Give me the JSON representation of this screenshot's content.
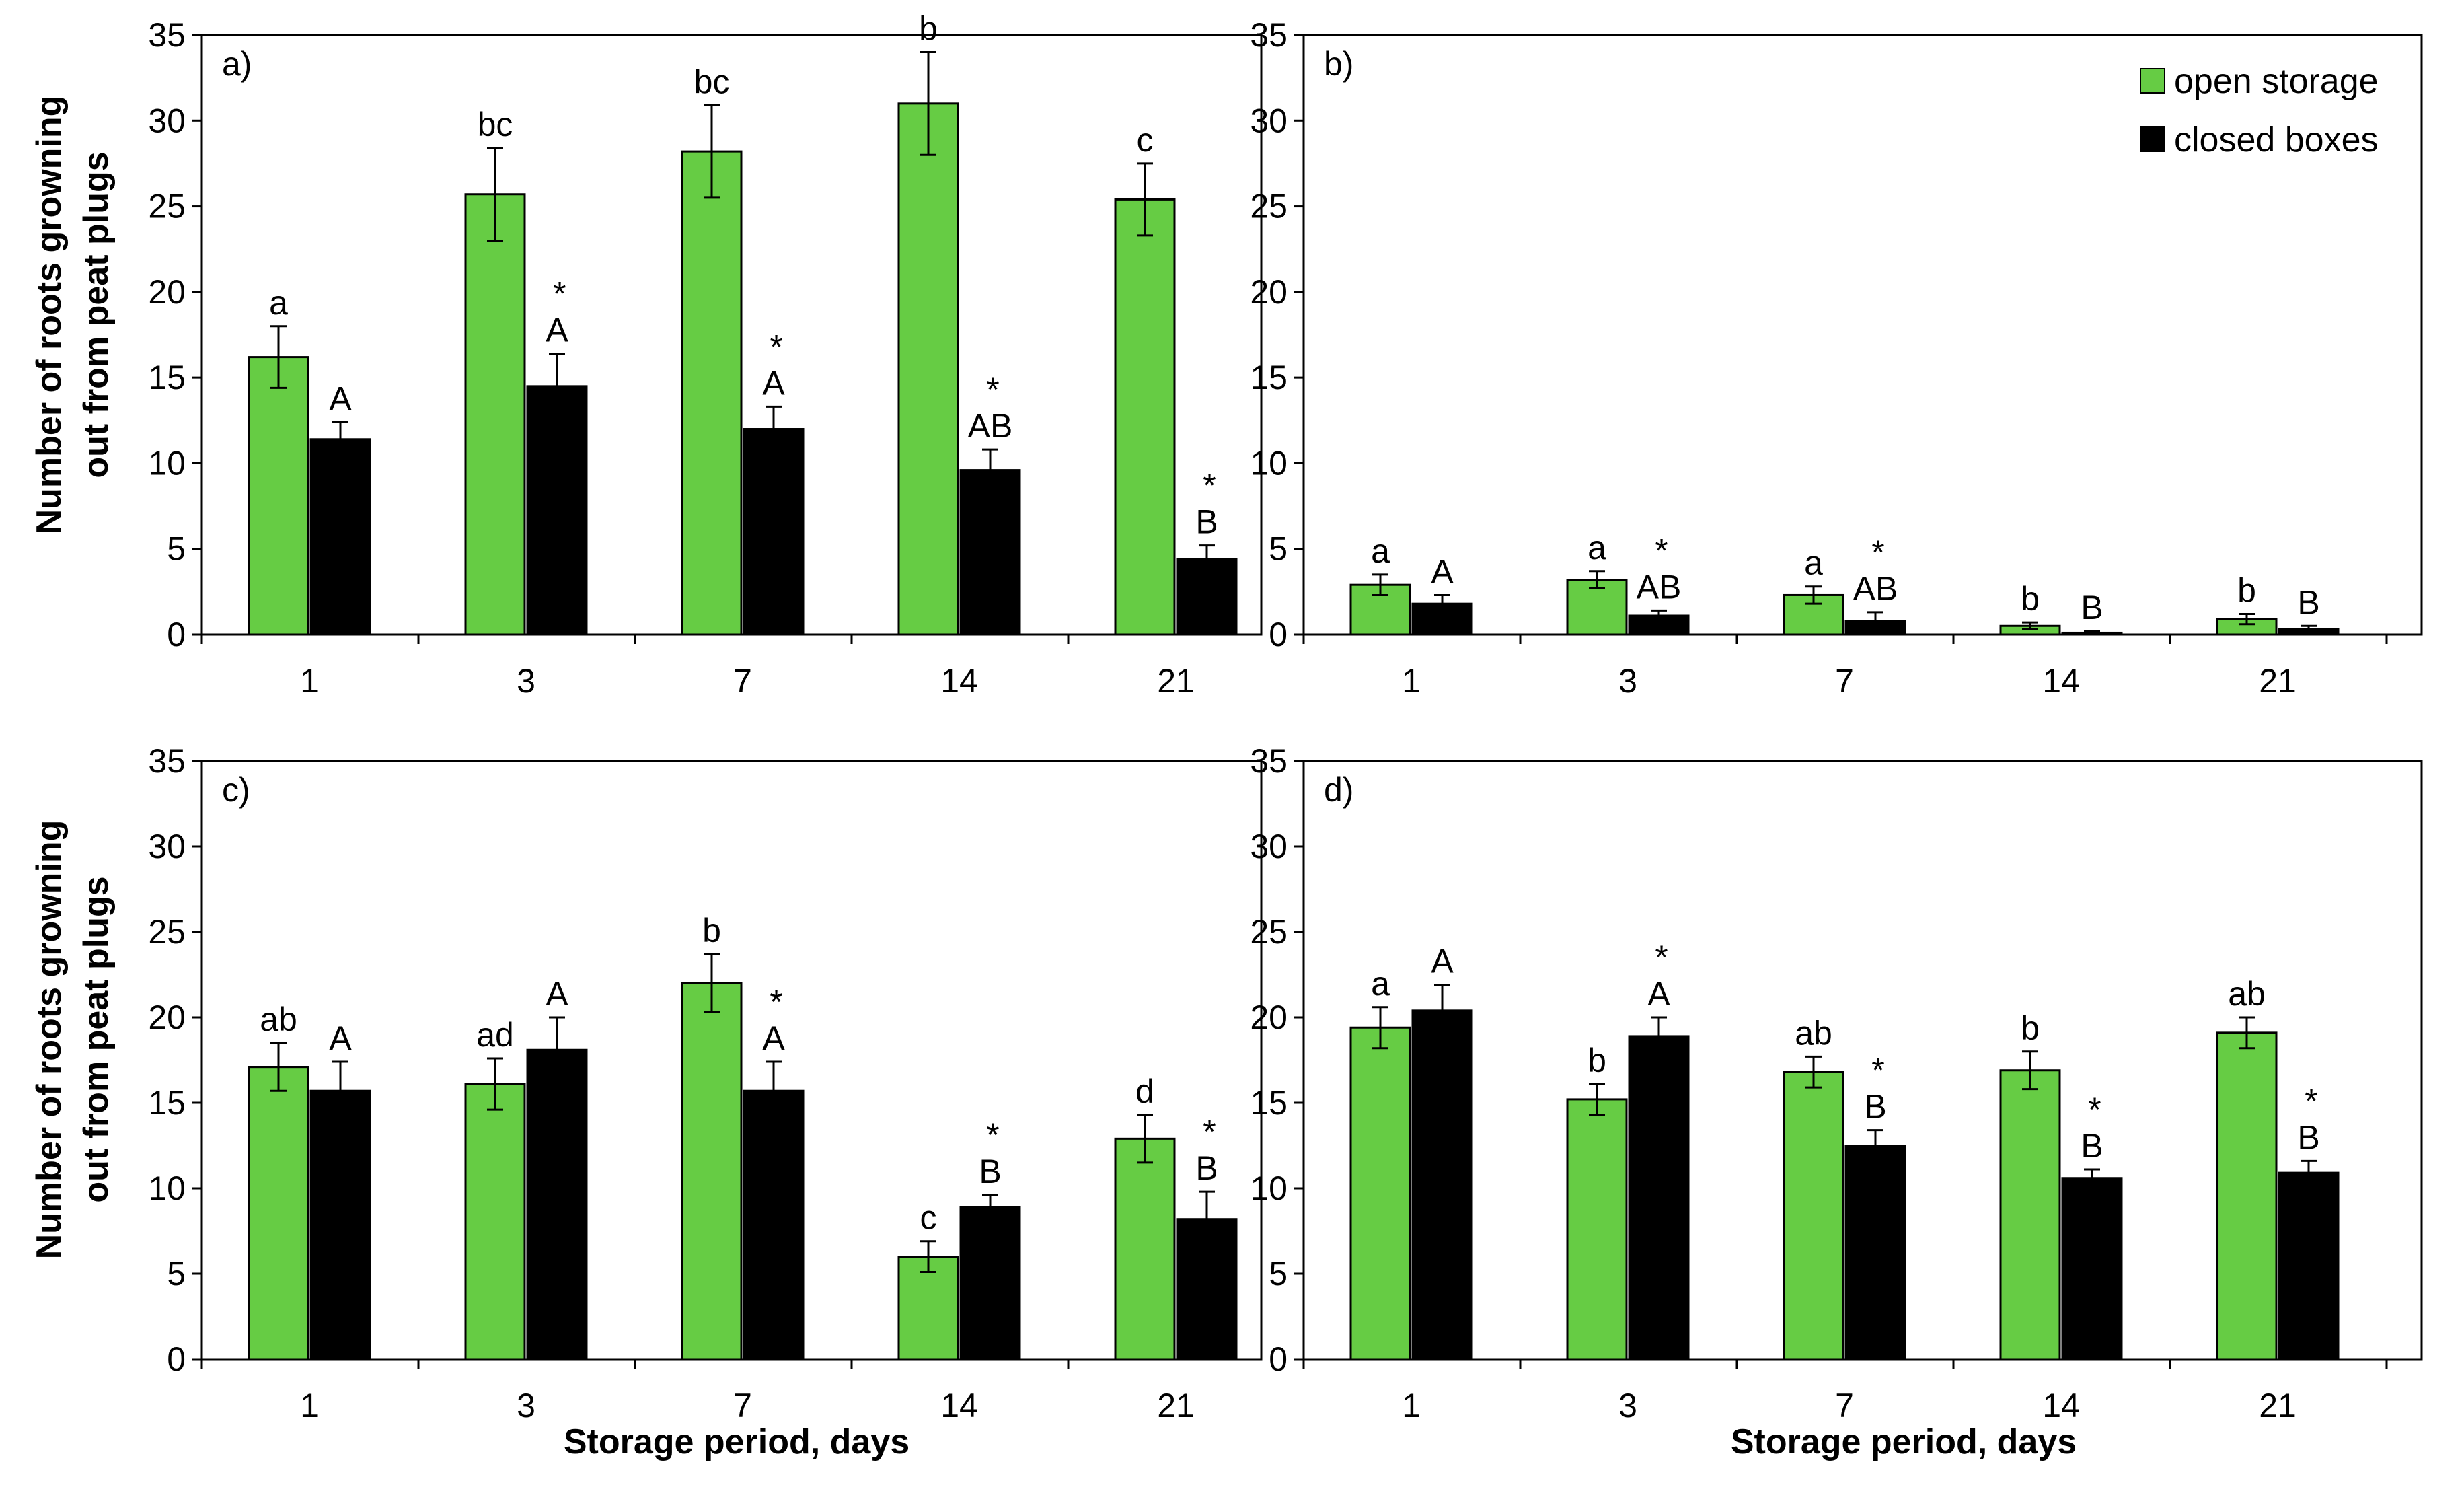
{
  "colors": {
    "open": "#66cc44",
    "closed": "#000000"
  },
  "legend": {
    "open": "open storage",
    "closed": "closed boxes"
  },
  "axis": {
    "ylabel_line1": "Number of roots growning",
    "ylabel_line2": "out from peat plugs",
    "xlabel": "Storage period, days"
  },
  "chart_data": [
    {
      "type": "bar",
      "panel": "a)",
      "categories": [
        "1",
        "3",
        "7",
        "14",
        "21"
      ],
      "ylim": [
        0,
        35
      ],
      "yticks": [
        0,
        5,
        10,
        15,
        20,
        25,
        30,
        35
      ],
      "series": [
        {
          "name": "open storage",
          "values": [
            16.2,
            25.7,
            28.2,
            31.0,
            25.4
          ],
          "errors": [
            1.8,
            2.7,
            2.7,
            3.0,
            2.1
          ],
          "labels": [
            "a",
            "bc",
            "bc",
            "b",
            "c"
          ]
        },
        {
          "name": "closed boxes",
          "values": [
            11.4,
            14.5,
            12.0,
            9.6,
            4.4
          ],
          "errors": [
            1.0,
            1.9,
            1.3,
            1.2,
            0.8
          ],
          "labels": [
            "A",
            "A",
            "A",
            "AB",
            "B"
          ]
        }
      ],
      "stars": [
        false,
        true,
        true,
        true,
        true
      ]
    },
    {
      "type": "bar",
      "panel": "b)",
      "categories": [
        "1",
        "3",
        "7",
        "14",
        "21"
      ],
      "ylim": [
        0,
        35
      ],
      "yticks": [
        0,
        5,
        10,
        15,
        20,
        25,
        30,
        35
      ],
      "series": [
        {
          "name": "open storage",
          "values": [
            2.9,
            3.2,
            2.3,
            0.5,
            0.9
          ],
          "errors": [
            0.6,
            0.5,
            0.5,
            0.2,
            0.3
          ],
          "labels": [
            "a",
            "a",
            "a",
            "b",
            "b"
          ]
        },
        {
          "name": "closed boxes",
          "values": [
            1.8,
            1.1,
            0.8,
            0.1,
            0.3
          ],
          "errors": [
            0.5,
            0.3,
            0.5,
            0.1,
            0.2
          ],
          "labels": [
            "A",
            "AB",
            "AB",
            "B",
            "B"
          ]
        }
      ],
      "stars": [
        false,
        true,
        true,
        false,
        false
      ]
    },
    {
      "type": "bar",
      "panel": "c)",
      "categories": [
        "1",
        "3",
        "7",
        "14",
        "21"
      ],
      "ylim": [
        0,
        35
      ],
      "yticks": [
        0,
        5,
        10,
        15,
        20,
        25,
        30,
        35
      ],
      "series": [
        {
          "name": "open storage",
          "values": [
            17.1,
            16.1,
            22.0,
            6.0,
            12.9
          ],
          "errors": [
            1.4,
            1.5,
            1.7,
            0.9,
            1.4
          ],
          "labels": [
            "ab",
            "ad",
            "b",
            "c",
            "d"
          ]
        },
        {
          "name": "closed boxes",
          "values": [
            15.7,
            18.1,
            15.7,
            8.9,
            8.2
          ],
          "errors": [
            1.7,
            1.9,
            1.7,
            0.7,
            1.6
          ],
          "labels": [
            "A",
            "A",
            "A",
            "B",
            "B"
          ]
        }
      ],
      "stars": [
        false,
        false,
        true,
        true,
        true
      ]
    },
    {
      "type": "bar",
      "panel": "d)",
      "categories": [
        "1",
        "3",
        "7",
        "14",
        "21"
      ],
      "ylim": [
        0,
        35
      ],
      "yticks": [
        0,
        5,
        10,
        15,
        20,
        25,
        30,
        35
      ],
      "series": [
        {
          "name": "open storage",
          "values": [
            19.4,
            15.2,
            16.8,
            16.9,
            19.1
          ],
          "errors": [
            1.2,
            0.9,
            0.9,
            1.1,
            0.9
          ],
          "labels": [
            "a",
            "b",
            "ab",
            "b",
            "ab"
          ]
        },
        {
          "name": "closed boxes",
          "values": [
            20.4,
            18.9,
            12.5,
            10.6,
            10.9
          ],
          "errors": [
            1.5,
            1.1,
            0.9,
            0.5,
            0.7
          ],
          "labels": [
            "A",
            "A",
            "B",
            "B",
            "B"
          ]
        }
      ],
      "stars": [
        false,
        true,
        true,
        true,
        true
      ]
    }
  ]
}
